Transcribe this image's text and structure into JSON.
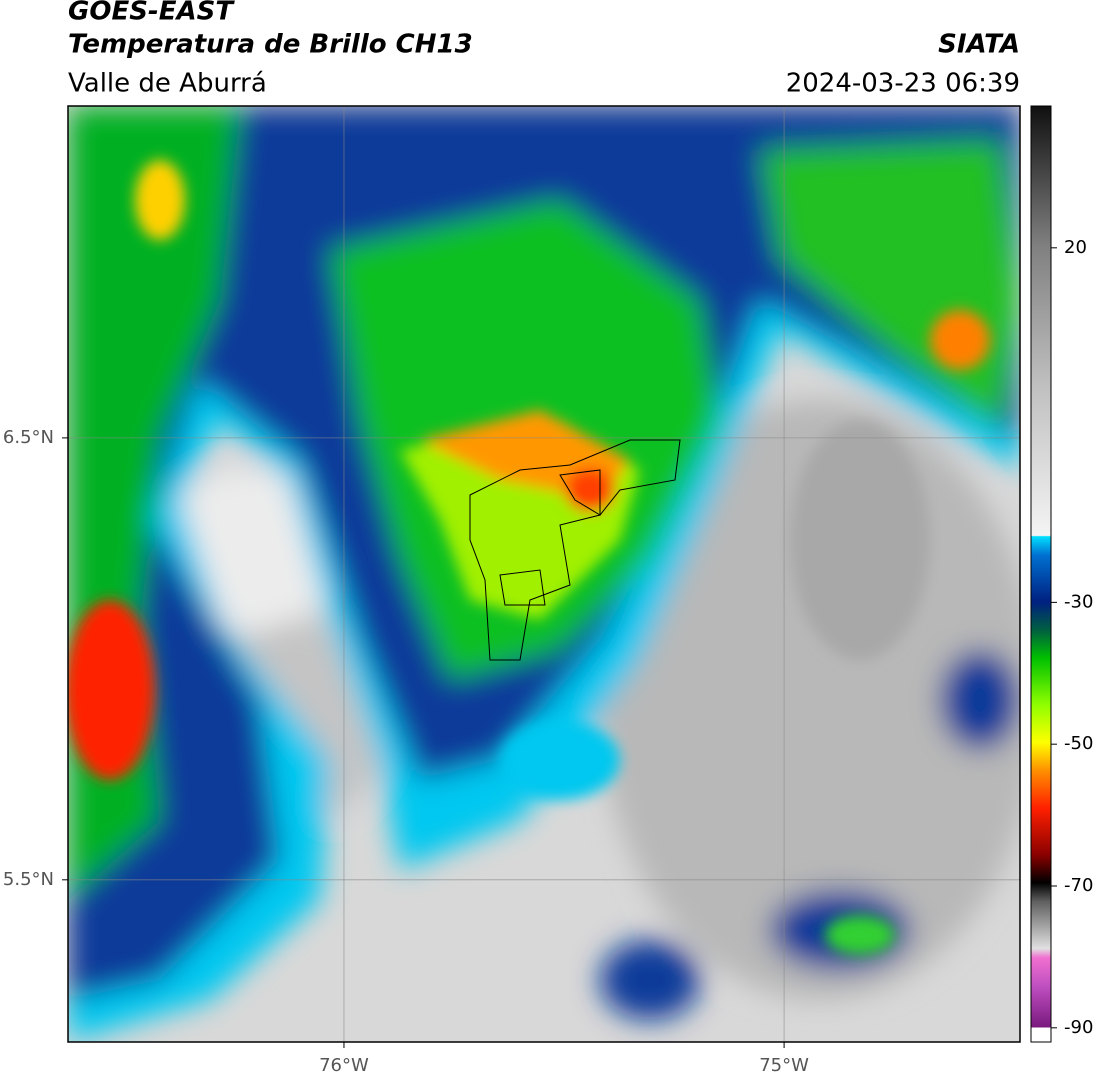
{
  "header": {
    "title": "GOES-EAST",
    "subtitle": "Temperatura de Brillo CH13",
    "region": "Valle de Aburrá",
    "agency": "SIATA",
    "timestamp": "2024-03-23 06:39"
  },
  "map": {
    "xlim": [
      -76.627,
      -74.464
    ],
    "ylim": [
      5.133,
      7.251
    ],
    "xticks": [
      {
        "value": -76,
        "label": "76°W"
      },
      {
        "value": -75,
        "label": "75°W"
      }
    ],
    "yticks": [
      {
        "value": 6.5,
        "label": "6.5°N"
      },
      {
        "value": 5.5,
        "label": "5.5°N"
      }
    ],
    "grid": true
  },
  "colorbar": {
    "lim": [
      -92,
      40
    ],
    "ticks": [
      20,
      -30,
      -50,
      -70,
      -90
    ]
  }
}
